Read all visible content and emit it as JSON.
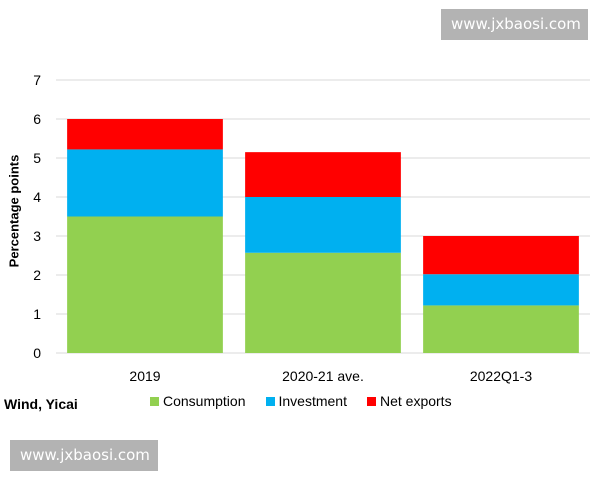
{
  "watermark_top": "www.jxbaosi.com",
  "watermark_bottom": "www.jxbaosi.com",
  "source": "Wind, Yicai",
  "chart_data": {
    "type": "bar",
    "stacked": true,
    "categories": [
      "2019",
      "2020-21 ave.",
      "2022Q1-3"
    ],
    "series": [
      {
        "name": "Consumption",
        "color": "#92d050",
        "values": [
          3.5,
          2.57,
          1.22
        ]
      },
      {
        "name": "Investment",
        "color": "#00b0f0",
        "values": [
          1.72,
          1.43,
          0.8
        ]
      },
      {
        "name": "Net exports",
        "color": "#ff0000",
        "values": [
          0.78,
          1.15,
          0.98
        ]
      }
    ],
    "ylabel": "Percentage points",
    "xlabel": "",
    "ylim": [
      0,
      7
    ],
    "yticks": [
      "0",
      "1",
      "2",
      "3",
      "4",
      "5",
      "6",
      "7"
    ],
    "grid": true,
    "legend_position": "bottom"
  }
}
